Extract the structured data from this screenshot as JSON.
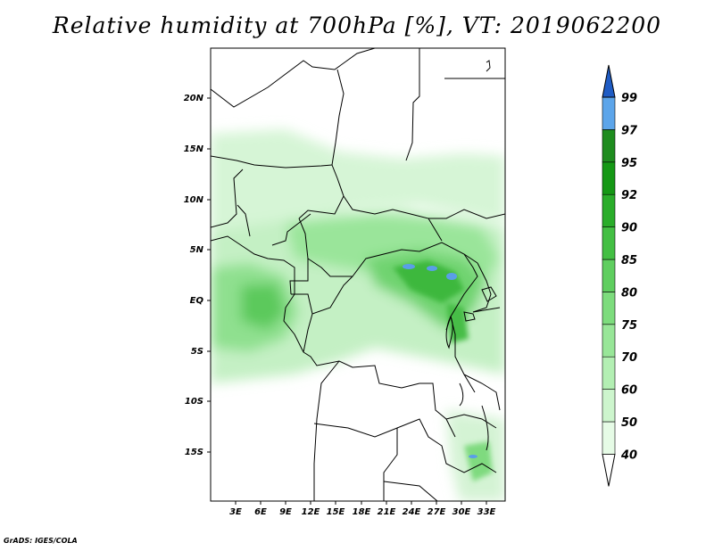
{
  "title": "Relative humidity at 700hPa [%], VT: 2019062200",
  "credit": "GrADS: IGES/COLA",
  "lat_ticks": [
    "20N",
    "15N",
    "10N",
    "5N",
    "EQ",
    "5S",
    "10S",
    "15S"
  ],
  "lon_ticks": [
    "3E",
    "6E",
    "9E",
    "12E",
    "15E",
    "18E",
    "21E",
    "24E",
    "27E",
    "30E",
    "33E"
  ],
  "colorbar": {
    "levels": [
      "40",
      "50",
      "60",
      "70",
      "75",
      "80",
      "85",
      "90",
      "92",
      "95",
      "97",
      "99"
    ],
    "colors": [
      "#ffffff",
      "#e6fbe6",
      "#cdf5cd",
      "#b3efb3",
      "#98e698",
      "#7ddc7d",
      "#5fce5f",
      "#43bf43",
      "#2aad2a",
      "#159815",
      "#1e8c1e",
      "#5ca5ea",
      "#3a7ed6",
      "#1f5cc4"
    ]
  }
}
